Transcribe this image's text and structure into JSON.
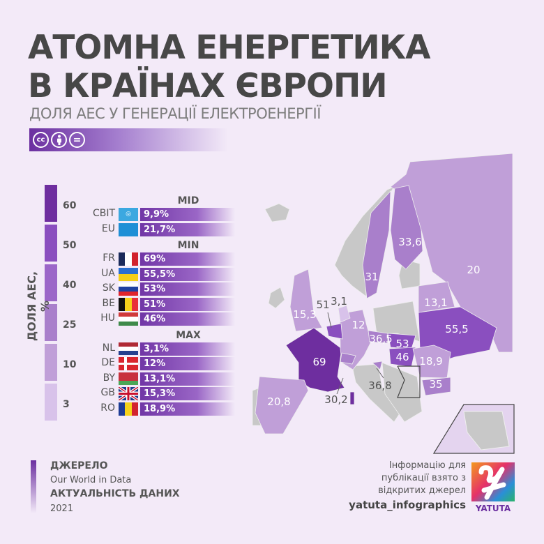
{
  "header": {
    "title_line1": "АТОМНА ЕНЕРГЕТИКА",
    "title_line2": "В КРАЇНАХ ЄВРОПИ",
    "subtitle": "ДОЛЯ АЕС У ГЕНЕРАЦІЇ ЕЛЕКТРОЕНЕРГІЇ",
    "license_icons": [
      "cc-icon",
      "attribution-icon",
      "no-derivatives-icon"
    ],
    "cc_text": "cc",
    "nd_text": "="
  },
  "colors": {
    "c60": "#6e2e9f",
    "c50": "#8a4fbf",
    "c40": "#9b66c8",
    "c25": "#a97fcb",
    "c10": "#c09fd8",
    "c3": "#d8c2ea",
    "no_data": "#c8c8c8",
    "background": "#f3eaf8"
  },
  "chart_data": {
    "type": "choropleth-map",
    "title": "АТОМНА ЕНЕРГЕТИКА В КРАЇНАХ ЄВРОПИ",
    "subtitle": "ДОЛЯ АЕС У ГЕНЕРАЦІЇ ЕЛЕКТРОЕНЕРГІЇ",
    "legend": {
      "title": "ДОЛЯ АЕС, %",
      "ticks": [
        "60",
        "50",
        "40",
        "25",
        "10",
        "3"
      ]
    },
    "groups": [
      {
        "label": "MID",
        "rows": [
          {
            "code": "СВІТ",
            "value": "9,9%",
            "flag": "un"
          },
          {
            "code": "EU",
            "value": "21,7%",
            "flag": "eu"
          }
        ]
      },
      {
        "label": "MIN",
        "rows": [
          {
            "code": "FR",
            "value": "69%",
            "flag": "fr"
          },
          {
            "code": "UA",
            "value": "55,5%",
            "flag": "ua"
          },
          {
            "code": "SK",
            "value": "53%",
            "flag": "sk"
          },
          {
            "code": "BE",
            "value": "51%",
            "flag": "be"
          },
          {
            "code": "HU",
            "value": "46%",
            "flag": "hu"
          }
        ]
      },
      {
        "label": "MAX",
        "rows": [
          {
            "code": "NL",
            "value": "3,1%",
            "flag": "nl"
          },
          {
            "code": "DE",
            "value": "12%",
            "flag": "dk"
          },
          {
            "code": "BY",
            "value": "13,1%",
            "flag": "by"
          },
          {
            "code": "GB",
            "value": "15,3%",
            "flag": "gb"
          },
          {
            "code": "RO",
            "value": "18,9%",
            "flag": "ro"
          }
        ]
      }
    ],
    "map_values": {
      "RU": "20",
      "FI": "33,6",
      "SE": "31",
      "GB": "15,3",
      "FR": "69",
      "ES": "20,8",
      "DE": "12",
      "BE": "51",
      "NL": "3,1",
      "CZ": "36,5",
      "SK": "53",
      "HU": "46",
      "UA": "55,5",
      "BY": "13,1",
      "RO": "18,9",
      "BG": "35",
      "SI": "36,8",
      "CH": "30,2"
    }
  },
  "footer": {
    "source_label": "ДЖЕРЕЛО",
    "source": "Our World in Data",
    "date_label": "АКТУАЛЬНІСТЬ ДАНИХ",
    "date": "2021",
    "note_line1": "Інформацію для",
    "note_line2": "публікації взято з",
    "note_line3": "відкритих джерел",
    "handle": "yatuta_infographics",
    "logo_text": "YATUTA"
  }
}
